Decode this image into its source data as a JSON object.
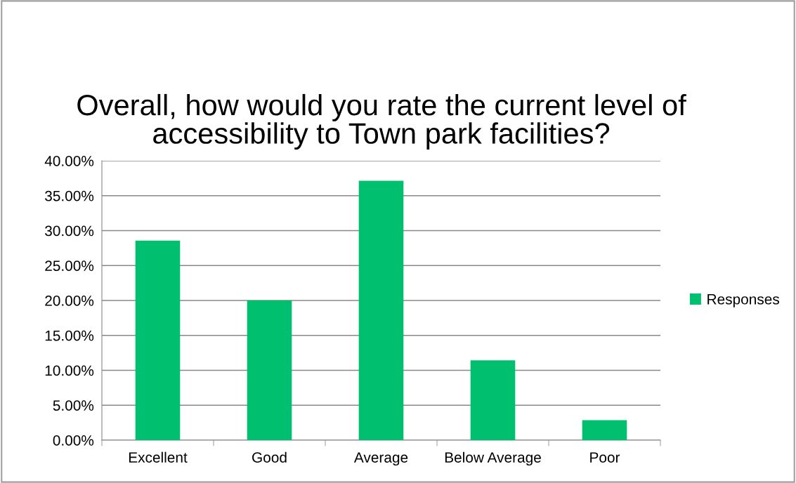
{
  "chart_data": {
    "type": "bar",
    "title": "Overall, how would you rate the current level of accessibility to Town park facilities?",
    "categories": [
      "Excellent",
      "Good",
      "Average",
      "Below Average",
      "Poor"
    ],
    "series": [
      {
        "name": "Responses",
        "color": "#00c06f",
        "values": [
          28.57,
          20.0,
          37.14,
          11.43,
          2.86
        ]
      }
    ],
    "ylim": [
      0,
      40
    ],
    "yticks": [
      {
        "value": 0,
        "label": "0.00%"
      },
      {
        "value": 5,
        "label": "5.00%"
      },
      {
        "value": 10,
        "label": "10.00%"
      },
      {
        "value": 15,
        "label": "15.00%"
      },
      {
        "value": 20,
        "label": "20.00%"
      },
      {
        "value": 25,
        "label": "25.00%"
      },
      {
        "value": 30,
        "label": "30.00%"
      },
      {
        "value": 35,
        "label": "35.00%"
      },
      {
        "value": 40,
        "label": "40.00%"
      }
    ],
    "grid": "y",
    "legend": "right"
  }
}
